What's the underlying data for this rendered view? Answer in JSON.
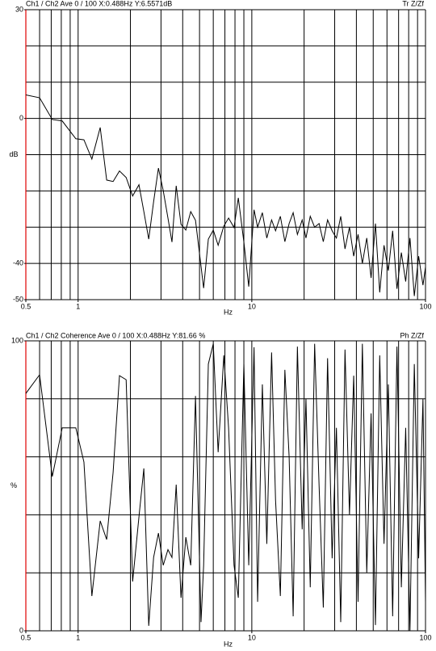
{
  "chart_data": [
    {
      "type": "line",
      "title": "Ch1 / Ch2  Ave 0 / 100  X:0.488Hz  Y:6.5571dB",
      "title_right": "Tr Z/Zf",
      "ylabel": "dB",
      "xlabel": "Hz",
      "xscale": "log",
      "xlim": [
        0.5,
        100
      ],
      "xticks": [
        0.5,
        1,
        10,
        100
      ],
      "xgrid": [
        0.6,
        0.7,
        0.8,
        0.9,
        1,
        2,
        3,
        4,
        5,
        6,
        7,
        8,
        9,
        10,
        20,
        30,
        40,
        50,
        60,
        70,
        80,
        90,
        100
      ],
      "ylim": [
        -50,
        30
      ],
      "yticks": [
        -50,
        -40,
        0,
        30
      ],
      "ygrid": [
        -50,
        -40,
        -30,
        -20,
        -10,
        0,
        10,
        20,
        30
      ],
      "axis_color": "#e00000",
      "x": [
        0.488,
        0.6,
        0.71,
        0.81,
        0.97,
        1.08,
        1.2,
        1.34,
        1.46,
        1.59,
        1.73,
        1.89,
        2.06,
        2.24,
        2.39,
        2.55,
        2.72,
        2.9,
        3.09,
        3.29,
        3.47,
        3.67,
        3.91,
        4.17,
        4.45,
        4.74,
        5.1,
        5.28,
        5.62,
        6.0,
        6.4,
        6.9,
        7.35,
        7.9,
        8.36,
        9.0,
        9.6,
        10.3,
        10.8,
        11.5,
        12.2,
        13,
        13.7,
        14.6,
        15.5,
        16.4,
        17.3,
        18.3,
        19.5,
        20.5,
        21.7,
        23,
        24.4,
        25.8,
        27.3,
        29,
        30.7,
        32.5,
        34.4,
        36.5,
        38.6,
        40.9,
        43.3,
        45.9,
        48.6,
        51.5,
        54.5,
        57.7,
        61.1,
        64.7,
        68.5,
        72.6,
        76.9,
        81.4,
        86.2,
        91.3,
        96.7,
        100
      ],
      "series": [
        {
          "color": "#000000",
          "values": [
            6.6,
            5.7,
            -0.3,
            -0.7,
            -5.6,
            -5.9,
            -11.2,
            -2.5,
            -17,
            -17.4,
            -14.5,
            -16.3,
            -21.4,
            -18.3,
            -25.7,
            -33.3,
            -23,
            -13.7,
            -19.9,
            -27.5,
            -34.1,
            -18.6,
            -29.2,
            -30.8,
            -25.7,
            -28.1,
            -40.8,
            -46.8,
            -33.3,
            -30.8,
            -35,
            -29.7,
            -27.5,
            -30.1,
            -21.9,
            -34.1,
            -46.4,
            -25.2,
            -30,
            -26,
            -33,
            -28,
            -31,
            -27,
            -34,
            -29,
            -26,
            -32,
            -28,
            -33,
            -27,
            -30,
            -29,
            -34,
            -28,
            -31,
            -33,
            -27,
            -36,
            -30,
            -38,
            -32,
            -40,
            -33,
            -44,
            -29,
            -48,
            -35,
            -42,
            -31,
            -47,
            -37,
            -45,
            -33,
            -49,
            -38,
            -46,
            -41
          ]
        }
      ]
    },
    {
      "type": "line",
      "title": "Ch1 / Ch2  Coherence Ave 0 / 100  X:0.488Hz  Y:81.66 %",
      "title_right": "Ph Z/Zf",
      "ylabel": "%",
      "xlabel": "Hz",
      "xscale": "log",
      "xlim": [
        0.5,
        100
      ],
      "xticks": [
        0.5,
        1,
        10,
        100
      ],
      "xgrid": [
        0.6,
        0.7,
        0.8,
        0.9,
        1,
        2,
        3,
        4,
        5,
        6,
        7,
        8,
        9,
        10,
        20,
        30,
        40,
        50,
        60,
        70,
        80,
        90,
        100
      ],
      "ylim": [
        0,
        100
      ],
      "yticks": [
        0,
        100
      ],
      "ygrid": [
        0,
        20,
        40,
        60,
        80,
        100
      ],
      "axis_color": "#e00000",
      "x": [
        0.488,
        0.6,
        0.71,
        0.81,
        0.97,
        1.08,
        1.2,
        1.34,
        1.46,
        1.59,
        1.73,
        1.89,
        2.06,
        2.24,
        2.39,
        2.55,
        2.72,
        2.9,
        3.09,
        3.29,
        3.47,
        3.67,
        3.91,
        4.17,
        4.45,
        4.74,
        5.1,
        5.28,
        5.62,
        6.0,
        6.4,
        6.9,
        7.35,
        7.9,
        8.36,
        9.0,
        9.6,
        10.3,
        10.8,
        11.5,
        12.2,
        13,
        13.7,
        14.6,
        15.5,
        16.4,
        17.3,
        18.3,
        19.5,
        20.5,
        21.7,
        23,
        24.4,
        25.8,
        27.3,
        29,
        30.7,
        32.5,
        34.4,
        36.5,
        38.6,
        40.9,
        43.3,
        45.9,
        48.6,
        51.5,
        54.5,
        57.7,
        61.1,
        64.7,
        68.5,
        72.6,
        76.9,
        81.4,
        86.2,
        91.3,
        96.7,
        100
      ],
      "series": [
        {
          "color": "#000000",
          "values": [
            81,
            88.3,
            53.2,
            70,
            70,
            58.2,
            12,
            37.9,
            31.5,
            54.6,
            88,
            86.6,
            17,
            39.3,
            56,
            1.7,
            25.3,
            33.7,
            22.6,
            28,
            25.3,
            50.4,
            11.4,
            32.3,
            22.6,
            81,
            3,
            22.6,
            92,
            99,
            61.6,
            95,
            70,
            22.6,
            11.4,
            92,
            22.6,
            97.8,
            10,
            85,
            30,
            96,
            45,
            12,
            90,
            60,
            5,
            98,
            35,
            80,
            15,
            99,
            50,
            8,
            94,
            25,
            70,
            3,
            97,
            40,
            88,
            10,
            99,
            20,
            75,
            2,
            95,
            30,
            85,
            5,
            98,
            15,
            70,
            0,
            92,
            25,
            80,
            10
          ]
        }
      ]
    }
  ]
}
